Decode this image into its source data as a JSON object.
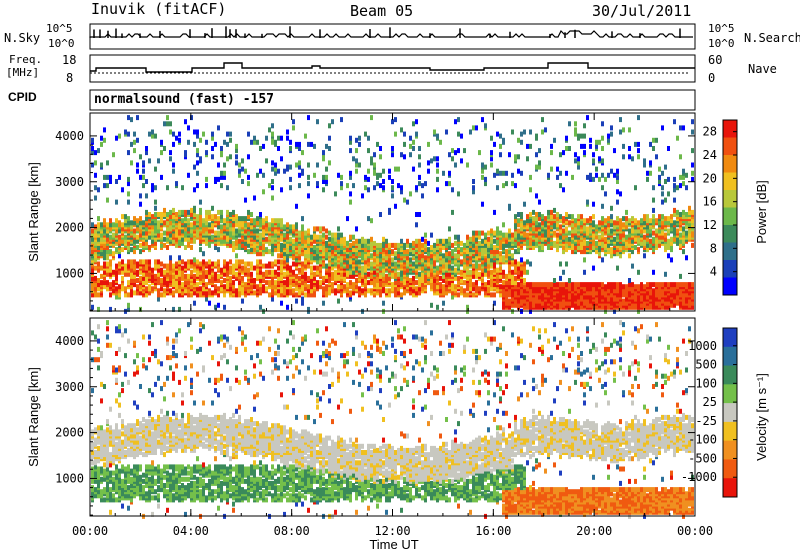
{
  "header": {
    "station": "Inuvik (fitACF)",
    "beam": "Beam 05",
    "date": "30/Jul/2011"
  },
  "top_panels": {
    "nsky": {
      "left_label": "N.Sky",
      "left_ticks": [
        "10^5",
        "10^0"
      ],
      "right_label": "N.Search",
      "right_ticks": [
        "10^5",
        "10^0"
      ]
    },
    "freq": {
      "left_label_1": "Freq.",
      "left_label_2": "[MHz]",
      "left_ticks": [
        "18",
        "8"
      ],
      "right_label": "Nave",
      "right_ticks": [
        "60",
        "0"
      ]
    },
    "cpid": {
      "label": "CPID",
      "value": "normalsound (fast) -157"
    }
  },
  "colors": {
    "power": [
      "#0000ff",
      "#1a3fb8",
      "#2f6f8a",
      "#3c8a5a",
      "#6cb84a",
      "#b8c83a",
      "#f0c020",
      "#f08a10",
      "#f05010",
      "#e8140a"
    ],
    "velocity": [
      "#1f3fc0",
      "#2a6f9a",
      "#3a8a5a",
      "#74c04a",
      "#c8c8c0",
      "#f0c020",
      "#f09020",
      "#f05a10",
      "#e8140a"
    ]
  },
  "chart_data": [
    {
      "type": "heatmap",
      "title": "",
      "ylabel": "Slant Range [km]",
      "xlabel": "",
      "x_ticks": [
        "00:00",
        "04:00",
        "08:00",
        "12:00",
        "16:00",
        "20:00",
        "00:00"
      ],
      "y_ticks": [
        "1000",
        "2000",
        "3000",
        "4000"
      ],
      "ylim": [
        180,
        4500
      ],
      "colorbar": {
        "label": "Power [dB]",
        "ticks": [
          "4",
          "8",
          "12",
          "16",
          "20",
          "24",
          "28"
        ],
        "range": [
          0,
          30
        ]
      }
    },
    {
      "type": "heatmap",
      "title": "",
      "ylabel": "Slant Range [km]",
      "xlabel": "Time UT",
      "x_ticks": [
        "00:00",
        "04:00",
        "08:00",
        "12:00",
        "16:00",
        "20:00",
        "00:00"
      ],
      "y_ticks": [
        "1000",
        "2000",
        "3000",
        "4000"
      ],
      "ylim": [
        180,
        4500
      ],
      "colorbar": {
        "label": "Velocity [m s⁻¹]",
        "ticks": [
          "1000",
          "500",
          "100",
          "25",
          "-25",
          "-100",
          "-500",
          "-1000"
        ]
      }
    }
  ]
}
